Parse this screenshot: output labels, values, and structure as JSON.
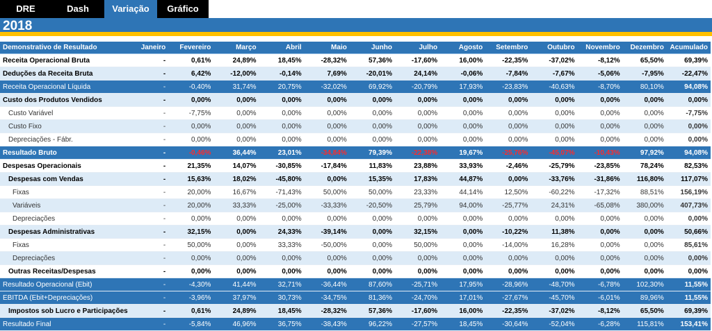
{
  "tabs": [
    {
      "label": "DRE",
      "active": false
    },
    {
      "label": "Dash",
      "active": false
    },
    {
      "label": "Variação",
      "active": true
    },
    {
      "label": "Gráfico",
      "active": false
    }
  ],
  "year": "2018",
  "colors": {
    "header_blue": "#2e75b6",
    "accent_gold": "#ffc000",
    "negative_red": "#ff0000",
    "zebra": "#ddebf7"
  },
  "table": {
    "columns": [
      "Demonstrativo de Resultado",
      "Janeiro",
      "Fevereiro",
      "Março",
      "Abril",
      "Maio",
      "Junho",
      "Julho",
      "Agosto",
      "Setembro",
      "Outubro",
      "Novembro",
      "Dezembro",
      "Acumulado"
    ],
    "rows": [
      {
        "label": "Receita Operacional Bruta",
        "style": "bold",
        "indent": 0,
        "values": [
          "-",
          "0,61%",
          "24,89%",
          "18,45%",
          "-28,32%",
          "57,36%",
          "-17,60%",
          "16,00%",
          "-22,35%",
          "-37,02%",
          "-8,12%",
          "65,50%",
          "69,39%"
        ]
      },
      {
        "label": "Deduções da Receita Bruta",
        "style": "bold",
        "indent": 0,
        "values": [
          "-",
          "6,42%",
          "-12,00%",
          "-0,14%",
          "7,69%",
          "-20,01%",
          "24,14%",
          "-0,06%",
          "-7,84%",
          "-7,67%",
          "-5,06%",
          "-7,95%",
          "-22,47%"
        ]
      },
      {
        "label": "Receita Operacional Líquida",
        "style": "blue",
        "indent": 0,
        "values": [
          "-",
          "-0,40%",
          "31,74%",
          "20,75%",
          "-32,02%",
          "69,92%",
          "-20,79%",
          "17,93%",
          "-23,83%",
          "-40,63%",
          "-8,70%",
          "80,10%",
          "94,08%"
        ]
      },
      {
        "label": "Custo dos Produtos Vendidos",
        "style": "bold",
        "indent": 0,
        "values": [
          "-",
          "0,00%",
          "0,00%",
          "0,00%",
          "0,00%",
          "0,00%",
          "0,00%",
          "0,00%",
          "0,00%",
          "0,00%",
          "0,00%",
          "0,00%",
          "0,00%"
        ]
      },
      {
        "label": "Custo Variável",
        "style": "sub",
        "indent": 1,
        "values": [
          "-",
          "-7,75%",
          "0,00%",
          "0,00%",
          "0,00%",
          "0,00%",
          "0,00%",
          "0,00%",
          "0,00%",
          "0,00%",
          "0,00%",
          "0,00%",
          "-7,75%"
        ]
      },
      {
        "label": "Custo Fixo",
        "style": "sub",
        "indent": 1,
        "values": [
          "-",
          "0,00%",
          "0,00%",
          "0,00%",
          "0,00%",
          "0,00%",
          "0,00%",
          "0,00%",
          "0,00%",
          "0,00%",
          "0,00%",
          "0,00%",
          "0,00%"
        ]
      },
      {
        "label": "Depreciações - Fábr.",
        "style": "sub",
        "indent": 1,
        "values": [
          "-",
          "0,00%",
          "0,00%",
          "0,00%",
          "0,00%",
          "0,00%",
          "0,00%",
          "0,00%",
          "0,00%",
          "0,00%",
          "0,00%",
          "0,00%",
          "0,00%"
        ]
      },
      {
        "label": "Resultado Bruto",
        "style": "band",
        "indent": 0,
        "values": [
          "-",
          "-0,46%",
          "36,44%",
          "23,01%",
          "-34,84%",
          "79,39%",
          "-22,38%",
          "19,67%",
          "-25,76%",
          "-45,07%",
          "-10,43%",
          "97,92%",
          "94,08%"
        ]
      },
      {
        "label": "Despesas Operacionais",
        "style": "bold",
        "indent": 0,
        "values": [
          "-",
          "21,35%",
          "14,07%",
          "-30,85%",
          "-17,84%",
          "11,83%",
          "23,88%",
          "33,93%",
          "-2,46%",
          "-25,79%",
          "-23,85%",
          "78,24%",
          "82,53%"
        ]
      },
      {
        "label": "Despesas com Vendas",
        "style": "bold",
        "indent": 1,
        "values": [
          "-",
          "15,63%",
          "18,02%",
          "-45,80%",
          "0,00%",
          "15,35%",
          "17,83%",
          "44,87%",
          "0,00%",
          "-33,76%",
          "-31,86%",
          "116,80%",
          "117,07%"
        ]
      },
      {
        "label": "Fixas",
        "style": "sub",
        "indent": 2,
        "values": [
          "-",
          "20,00%",
          "16,67%",
          "-71,43%",
          "50,00%",
          "50,00%",
          "23,33%",
          "44,14%",
          "12,50%",
          "-60,22%",
          "-17,32%",
          "88,51%",
          "156,19%"
        ]
      },
      {
        "label": "Variáveis",
        "style": "sub",
        "indent": 2,
        "values": [
          "-",
          "20,00%",
          "33,33%",
          "-25,00%",
          "-33,33%",
          "-20,50%",
          "25,79%",
          "94,00%",
          "-25,77%",
          "24,31%",
          "-65,08%",
          "380,00%",
          "407,73%"
        ]
      },
      {
        "label": "Depreciações",
        "style": "sub",
        "indent": 2,
        "values": [
          "-",
          "0,00%",
          "0,00%",
          "0,00%",
          "0,00%",
          "0,00%",
          "0,00%",
          "0,00%",
          "0,00%",
          "0,00%",
          "0,00%",
          "0,00%",
          "0,00%"
        ]
      },
      {
        "label": "Despesas Administrativas",
        "style": "bold",
        "indent": 1,
        "values": [
          "-",
          "32,15%",
          "0,00%",
          "24,33%",
          "-39,14%",
          "0,00%",
          "32,15%",
          "0,00%",
          "-10,22%",
          "11,38%",
          "0,00%",
          "0,00%",
          "50,66%"
        ]
      },
      {
        "label": "Fixas",
        "style": "sub",
        "indent": 2,
        "values": [
          "-",
          "50,00%",
          "0,00%",
          "33,33%",
          "-50,00%",
          "0,00%",
          "50,00%",
          "0,00%",
          "-14,00%",
          "16,28%",
          "0,00%",
          "0,00%",
          "85,61%"
        ]
      },
      {
        "label": "Depreciações",
        "style": "sub",
        "indent": 2,
        "values": [
          "-",
          "0,00%",
          "0,00%",
          "0,00%",
          "0,00%",
          "0,00%",
          "0,00%",
          "0,00%",
          "0,00%",
          "0,00%",
          "0,00%",
          "0,00%",
          "0,00%"
        ]
      },
      {
        "label": "Outras Receitas/Despesas",
        "style": "bold",
        "indent": 1,
        "values": [
          "-",
          "0,00%",
          "0,00%",
          "0,00%",
          "0,00%",
          "0,00%",
          "0,00%",
          "0,00%",
          "0,00%",
          "0,00%",
          "0,00%",
          "0,00%",
          "0,00%"
        ]
      },
      {
        "label": "Resultado Operacional (Ebit)",
        "style": "blue",
        "indent": 0,
        "values": [
          "-",
          "-4,30%",
          "41,44%",
          "32,71%",
          "-36,44%",
          "87,60%",
          "-25,71%",
          "17,95%",
          "-28,96%",
          "-48,70%",
          "-6,78%",
          "102,30%",
          "11,55%"
        ]
      },
      {
        "label": "EBITDA (Ebit+Depreciações)",
        "style": "blue",
        "indent": 0,
        "values": [
          "-",
          "-3,96%",
          "37,97%",
          "30,73%",
          "-34,75%",
          "81,36%",
          "-24,70%",
          "17,01%",
          "-27,67%",
          "-45,70%",
          "-6,01%",
          "89,96%",
          "11,55%"
        ]
      },
      {
        "label": "Impostos sob Lucro e Participações",
        "style": "bold",
        "indent": 1,
        "values": [
          "-",
          "0,61%",
          "24,89%",
          "18,45%",
          "-28,32%",
          "57,36%",
          "-17,60%",
          "16,00%",
          "-22,35%",
          "-37,02%",
          "-8,12%",
          "65,50%",
          "69,39%"
        ]
      },
      {
        "label": "Resultado Final",
        "style": "blue",
        "indent": 0,
        "values": [
          "-",
          "-5,84%",
          "46,96%",
          "36,75%",
          "-38,43%",
          "96,22%",
          "-27,57%",
          "18,45%",
          "-30,64%",
          "-52,04%",
          "-6,28%",
          "115,81%",
          "153,41%"
        ]
      }
    ]
  }
}
